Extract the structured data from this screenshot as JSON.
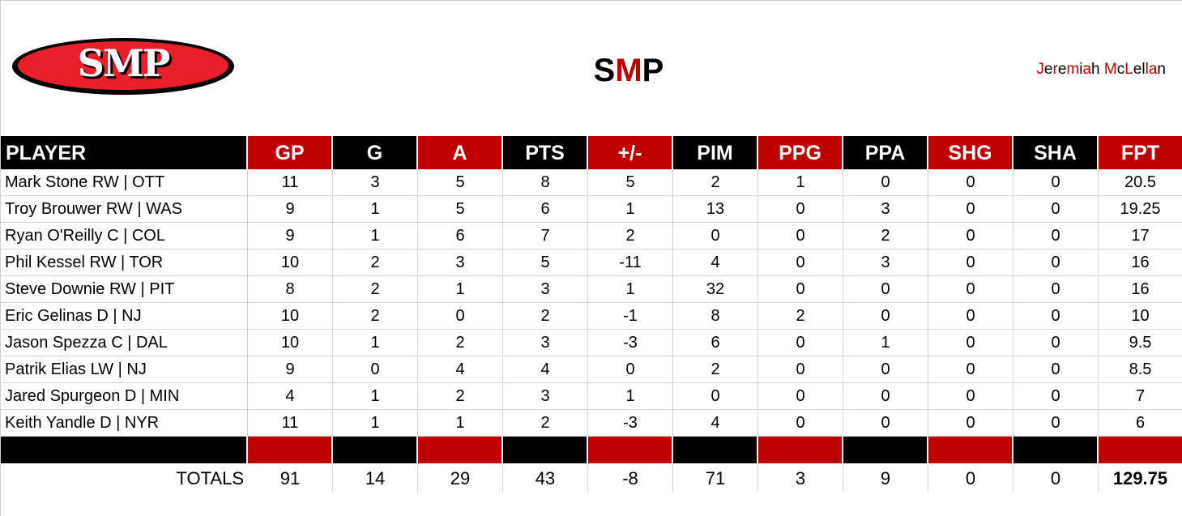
{
  "header": {
    "logo": {
      "text": "SMP",
      "icon": "smp-oval-logo",
      "colors": {
        "fill": "#e8202a",
        "outline": "#000000",
        "text": "#ffffff"
      }
    },
    "title": {
      "letters": [
        "S",
        "M",
        "P"
      ],
      "colors": [
        "#000000",
        "#c00000",
        "#000000"
      ]
    },
    "author": {
      "text": "Jeremiah McLellan",
      "segments": [
        {
          "t": "J",
          "c": "r"
        },
        {
          "t": "e",
          "c": "k"
        },
        {
          "t": "r",
          "c": "r"
        },
        {
          "t": "e",
          "c": "k"
        },
        {
          "t": "m",
          "c": "r"
        },
        {
          "t": "i",
          "c": "k"
        },
        {
          "t": "a",
          "c": "r"
        },
        {
          "t": "h",
          "c": "k"
        },
        {
          "t": " ",
          "c": "k"
        },
        {
          "t": "M",
          "c": "r"
        },
        {
          "t": "c",
          "c": "k"
        },
        {
          "t": "L",
          "c": "r"
        },
        {
          "t": "e",
          "c": "k"
        },
        {
          "t": "l",
          "c": "k"
        },
        {
          "t": "l",
          "c": "r"
        },
        {
          "t": "a",
          "c": "r"
        },
        {
          "t": "n",
          "c": "k"
        }
      ]
    }
  },
  "colors": {
    "red": "#c00000",
    "black": "#000000",
    "gridline": "#d4d4d4"
  },
  "table": {
    "columns": [
      "PLAYER",
      "GP",
      "G",
      "A",
      "PTS",
      "+/-",
      "PIM",
      "PPG",
      "PPA",
      "SHG",
      "SHA",
      "FPT"
    ],
    "column_bg": [
      "black",
      "red",
      "black",
      "red",
      "black",
      "red",
      "black",
      "red",
      "black",
      "red",
      "black",
      "red"
    ],
    "rows": [
      [
        "Mark Stone RW | OTT",
        "11",
        "3",
        "5",
        "8",
        "5",
        "2",
        "1",
        "0",
        "0",
        "0",
        "20.5"
      ],
      [
        "Troy Brouwer RW | WAS",
        "9",
        "1",
        "5",
        "6",
        "1",
        "13",
        "0",
        "3",
        "0",
        "0",
        "19.25"
      ],
      [
        "Ryan O'Reilly C | COL",
        "9",
        "1",
        "6",
        "7",
        "2",
        "0",
        "0",
        "2",
        "0",
        "0",
        "17"
      ],
      [
        "Phil Kessel RW | TOR",
        "10",
        "2",
        "3",
        "5",
        "-11",
        "4",
        "0",
        "3",
        "0",
        "0",
        "16"
      ],
      [
        "Steve Downie RW | PIT",
        "8",
        "2",
        "1",
        "3",
        "1",
        "32",
        "0",
        "0",
        "0",
        "0",
        "16"
      ],
      [
        "Eric Gelinas D | NJ",
        "10",
        "2",
        "0",
        "2",
        "-1",
        "8",
        "2",
        "0",
        "0",
        "0",
        "10"
      ],
      [
        "Jason Spezza C | DAL",
        "10",
        "1",
        "2",
        "3",
        "-3",
        "6",
        "0",
        "1",
        "0",
        "0",
        "9.5"
      ],
      [
        "Patrik Elias LW | NJ",
        "9",
        "0",
        "4",
        "4",
        "0",
        "2",
        "0",
        "0",
        "0",
        "0",
        "8.5"
      ],
      [
        "Jared Spurgeon D | MIN",
        "4",
        "1",
        "2",
        "3",
        "1",
        "0",
        "0",
        "0",
        "0",
        "0",
        "7"
      ],
      [
        "Keith Yandle D | NYR",
        "11",
        "1",
        "1",
        "2",
        "-3",
        "4",
        "0",
        "0",
        "0",
        "0",
        "6"
      ]
    ],
    "totals": [
      "TOTALS",
      "91",
      "14",
      "29",
      "43",
      "-8",
      "71",
      "3",
      "9",
      "0",
      "0",
      "129.75"
    ]
  }
}
